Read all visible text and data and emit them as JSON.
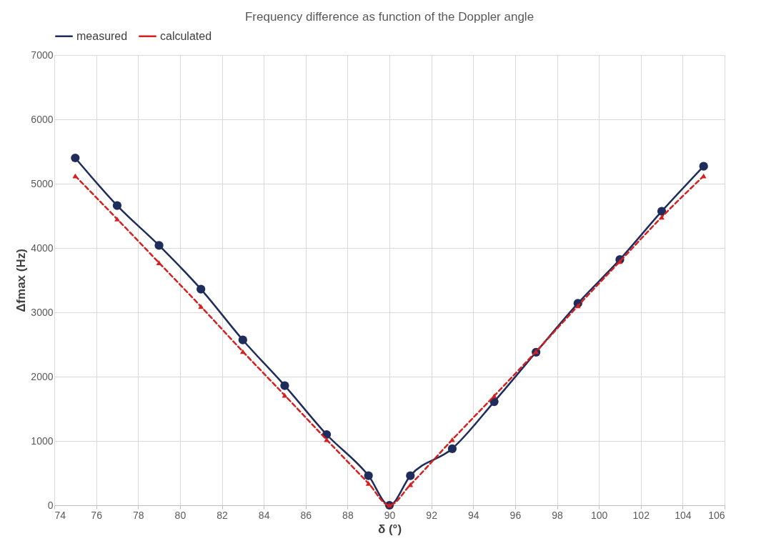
{
  "chart_data": {
    "type": "line",
    "title": "Frequency difference as function of the Doppler angle",
    "xlabel": "δ (°)",
    "ylabel": "Δfmax (Hz)",
    "x": [
      75,
      77,
      79,
      81,
      83,
      85,
      87,
      89,
      90,
      91,
      93,
      95,
      97,
      99,
      101,
      103,
      105
    ],
    "series": [
      {
        "name": "measured",
        "color": "#1f2d5c",
        "marker": "circle",
        "line_style": "solid",
        "values": [
          5400,
          4660,
          4040,
          3360,
          2570,
          1860,
          1100,
          460,
          0,
          460,
          880,
          1610,
          2380,
          3140,
          3820,
          4570,
          5270
        ]
      },
      {
        "name": "calculated",
        "color": "#d62020",
        "marker": "triangle",
        "line_style": "dashed",
        "values": [
          5120,
          4450,
          3770,
          3090,
          2390,
          1710,
          1020,
          340,
          0,
          320,
          1020,
          1700,
          2390,
          3100,
          3790,
          4480,
          5120
        ]
      }
    ],
    "xlim": [
      74,
      106
    ],
    "xticks": [
      74,
      76,
      78,
      80,
      82,
      84,
      86,
      88,
      90,
      92,
      94,
      96,
      98,
      100,
      102,
      104,
      106
    ],
    "ylim": [
      0,
      7000
    ],
    "yticks": [
      0,
      1000,
      2000,
      3000,
      4000,
      5000,
      6000,
      7000
    ],
    "grid": true,
    "legend": "top"
  }
}
